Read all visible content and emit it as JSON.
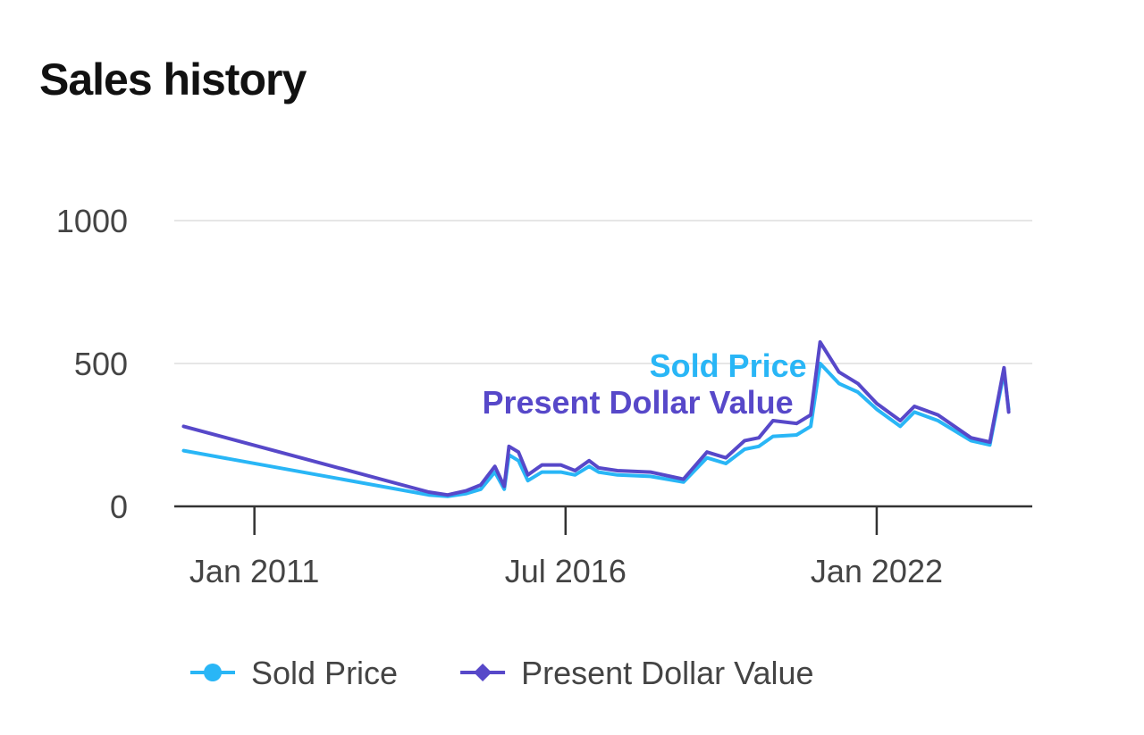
{
  "page": {
    "title": "Sales history"
  },
  "chart_data": {
    "type": "line",
    "title": "",
    "xlabel": "",
    "ylabel": "",
    "ylim": [
      0,
      1000
    ],
    "y_ticks": [
      0,
      500,
      1000
    ],
    "x_ticks": [
      "2011-01",
      "2016-07",
      "2022-01"
    ],
    "x_tick_labels": [
      "Jan 2011",
      "Jul 2016",
      "Jan 2022"
    ],
    "xlim": [
      "2009-08",
      "2024-10"
    ],
    "grid": true,
    "legend_position": "bottom",
    "series_label_placement": "inline-at-peak",
    "colors": {
      "Sold Price": "#29B6F6",
      "Present Dollar Value": "#5748C9"
    },
    "series": [
      {
        "name": "Sold Price",
        "marker": "circle",
        "points": [
          [
            "2009-10",
            195
          ],
          [
            "2014-02",
            40
          ],
          [
            "2014-06",
            35
          ],
          [
            "2014-10",
            45
          ],
          [
            "2015-01",
            60
          ],
          [
            "2015-04",
            120
          ],
          [
            "2015-06",
            60
          ],
          [
            "2015-07",
            180
          ],
          [
            "2015-09",
            160
          ],
          [
            "2015-11",
            90
          ],
          [
            "2016-02",
            120
          ],
          [
            "2016-06",
            120
          ],
          [
            "2016-09",
            110
          ],
          [
            "2016-12",
            140
          ],
          [
            "2017-02",
            120
          ],
          [
            "2017-06",
            110
          ],
          [
            "2018-01",
            105
          ],
          [
            "2018-08",
            85
          ],
          [
            "2019-01",
            170
          ],
          [
            "2019-05",
            150
          ],
          [
            "2019-09",
            200
          ],
          [
            "2019-12",
            210
          ],
          [
            "2020-03",
            245
          ],
          [
            "2020-08",
            250
          ],
          [
            "2020-11",
            280
          ],
          [
            "2021-01",
            500
          ],
          [
            "2021-05",
            430
          ],
          [
            "2021-09",
            400
          ],
          [
            "2022-01",
            340
          ],
          [
            "2022-06",
            280
          ],
          [
            "2022-09",
            330
          ],
          [
            "2023-02",
            300
          ],
          [
            "2023-09",
            230
          ],
          [
            "2024-01",
            215
          ],
          [
            "2024-04",
            470
          ],
          [
            "2024-05",
            340
          ]
        ]
      },
      {
        "name": "Present Dollar Value",
        "marker": "diamond",
        "points": [
          [
            "2009-10",
            280
          ],
          [
            "2014-02",
            50
          ],
          [
            "2014-06",
            40
          ],
          [
            "2014-10",
            55
          ],
          [
            "2015-01",
            75
          ],
          [
            "2015-04",
            140
          ],
          [
            "2015-06",
            70
          ],
          [
            "2015-07",
            210
          ],
          [
            "2015-09",
            190
          ],
          [
            "2015-11",
            110
          ],
          [
            "2016-02",
            145
          ],
          [
            "2016-06",
            145
          ],
          [
            "2016-09",
            125
          ],
          [
            "2016-12",
            160
          ],
          [
            "2017-02",
            135
          ],
          [
            "2017-06",
            125
          ],
          [
            "2018-01",
            120
          ],
          [
            "2018-08",
            95
          ],
          [
            "2019-01",
            190
          ],
          [
            "2019-05",
            170
          ],
          [
            "2019-09",
            230
          ],
          [
            "2019-12",
            240
          ],
          [
            "2020-03",
            300
          ],
          [
            "2020-08",
            290
          ],
          [
            "2020-11",
            320
          ],
          [
            "2021-01",
            575
          ],
          [
            "2021-05",
            470
          ],
          [
            "2021-09",
            430
          ],
          [
            "2022-01",
            360
          ],
          [
            "2022-06",
            300
          ],
          [
            "2022-09",
            350
          ],
          [
            "2023-02",
            320
          ],
          [
            "2023-09",
            240
          ],
          [
            "2024-01",
            225
          ],
          [
            "2024-04",
            485
          ],
          [
            "2024-05",
            330
          ]
        ]
      }
    ]
  }
}
